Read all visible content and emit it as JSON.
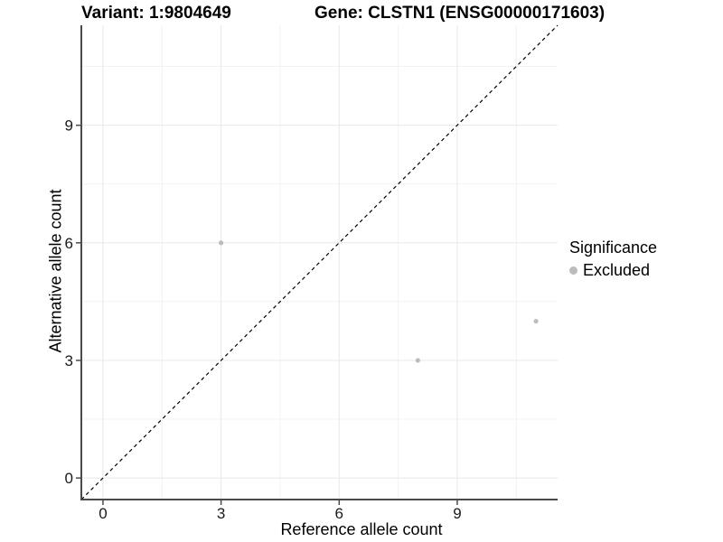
{
  "header": {
    "variant_title": "Variant: 1:9804649",
    "gene_title": "Gene: CLSTN1 (ENSG00000171603)"
  },
  "chart_data": {
    "type": "scatter",
    "xlabel": "Reference allele count",
    "ylabel": "Alternative allele count",
    "xlim": [
      -0.55,
      11.55
    ],
    "ylim": [
      -0.55,
      11.55
    ],
    "xticks": [
      0,
      3,
      6,
      9
    ],
    "yticks": [
      0,
      3,
      6,
      9
    ],
    "xticks_minor": [
      1.5,
      4.5,
      7.5,
      10.5
    ],
    "yticks_minor": [
      1.5,
      4.5,
      7.5,
      10.5
    ],
    "grid": "major+minor",
    "reference_line": {
      "type": "identity",
      "style": "dashed",
      "color": "#000000"
    },
    "series": [
      {
        "name": "Excluded",
        "color": "#bcbcbc",
        "marker": "circle",
        "marker_radius": 2.6,
        "points": [
          [
            3,
            6
          ],
          [
            8,
            3
          ],
          [
            11,
            4
          ]
        ]
      }
    ],
    "legend": {
      "title": "Significance",
      "position": "right",
      "items": [
        {
          "label": "Excluded",
          "color": "#bcbcbc"
        }
      ]
    }
  },
  "colors": {
    "background": "#ffffff",
    "grid_major": "#e8e8e8",
    "grid_minor": "#f2f2f2",
    "axis_line": "#4a4a4a",
    "tick_mark": "#4a4a4a",
    "tick_label": "#1a1a1a"
  }
}
